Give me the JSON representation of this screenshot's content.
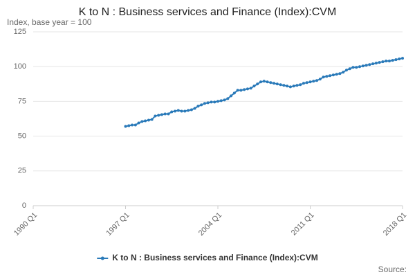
{
  "chart_data": {
    "type": "line",
    "title": "K to N : Business services and Finance (Index):CVM",
    "y_label": "Index, base year = 100",
    "source": "Source:",
    "categories": [
      "1990 Q1",
      null,
      null,
      null,
      null,
      null,
      null,
      null,
      null,
      null,
      null,
      null,
      null,
      null,
      null,
      null,
      null,
      null,
      null,
      null,
      null,
      null,
      null,
      null,
      null,
      null,
      null,
      null,
      "1997 Q1",
      null,
      null,
      null,
      null,
      null,
      null,
      null,
      null,
      null,
      null,
      null,
      null,
      null,
      null,
      null,
      null,
      null,
      null,
      null,
      null,
      null,
      null,
      null,
      null,
      null,
      null,
      null,
      "2004 Q1",
      null,
      null,
      null,
      null,
      null,
      null,
      null,
      null,
      null,
      null,
      null,
      null,
      null,
      null,
      null,
      null,
      null,
      null,
      null,
      null,
      null,
      null,
      null,
      null,
      null,
      null,
      null,
      "2011 Q1",
      null,
      null,
      null,
      null,
      null,
      null,
      null,
      null,
      null,
      null,
      null,
      null,
      null,
      null,
      null,
      null,
      null,
      null,
      null,
      null,
      null,
      null,
      null,
      null,
      null,
      null,
      null,
      "2018 Q1"
    ],
    "series": [
      {
        "name": "K to N : Business services and Finance (Index):CVM",
        "color": "#2a7ab9",
        "values": [
          null,
          null,
          null,
          null,
          null,
          null,
          null,
          null,
          null,
          null,
          null,
          null,
          null,
          null,
          null,
          null,
          null,
          null,
          null,
          null,
          null,
          null,
          null,
          null,
          null,
          null,
          null,
          null,
          57,
          57.5,
          58,
          58,
          59.5,
          60.5,
          61,
          61.5,
          62,
          64.5,
          65,
          65.5,
          66,
          66,
          67.5,
          68,
          68.5,
          68,
          68,
          68.5,
          69,
          70,
          71.5,
          72.5,
          73.5,
          74,
          74.5,
          74.5,
          75,
          75.5,
          76,
          77,
          79,
          81,
          83,
          83,
          83.5,
          84,
          84.5,
          86,
          87.5,
          89,
          89.5,
          89,
          88.5,
          88,
          87.5,
          87,
          86.5,
          86,
          85.5,
          86,
          86.5,
          87,
          88,
          88.5,
          89,
          89.5,
          90,
          91,
          92.5,
          93,
          93.5,
          94,
          94.5,
          95,
          96,
          97.5,
          98.5,
          99.5,
          99.5,
          100,
          100.5,
          101,
          101.5,
          102,
          102.5,
          103,
          103.5,
          104,
          104,
          104.5,
          105,
          105.5,
          106
        ]
      }
    ],
    "ylim": [
      0,
      125
    ],
    "yticks": [
      0,
      25,
      50,
      75,
      100,
      125
    ],
    "grid": true
  }
}
